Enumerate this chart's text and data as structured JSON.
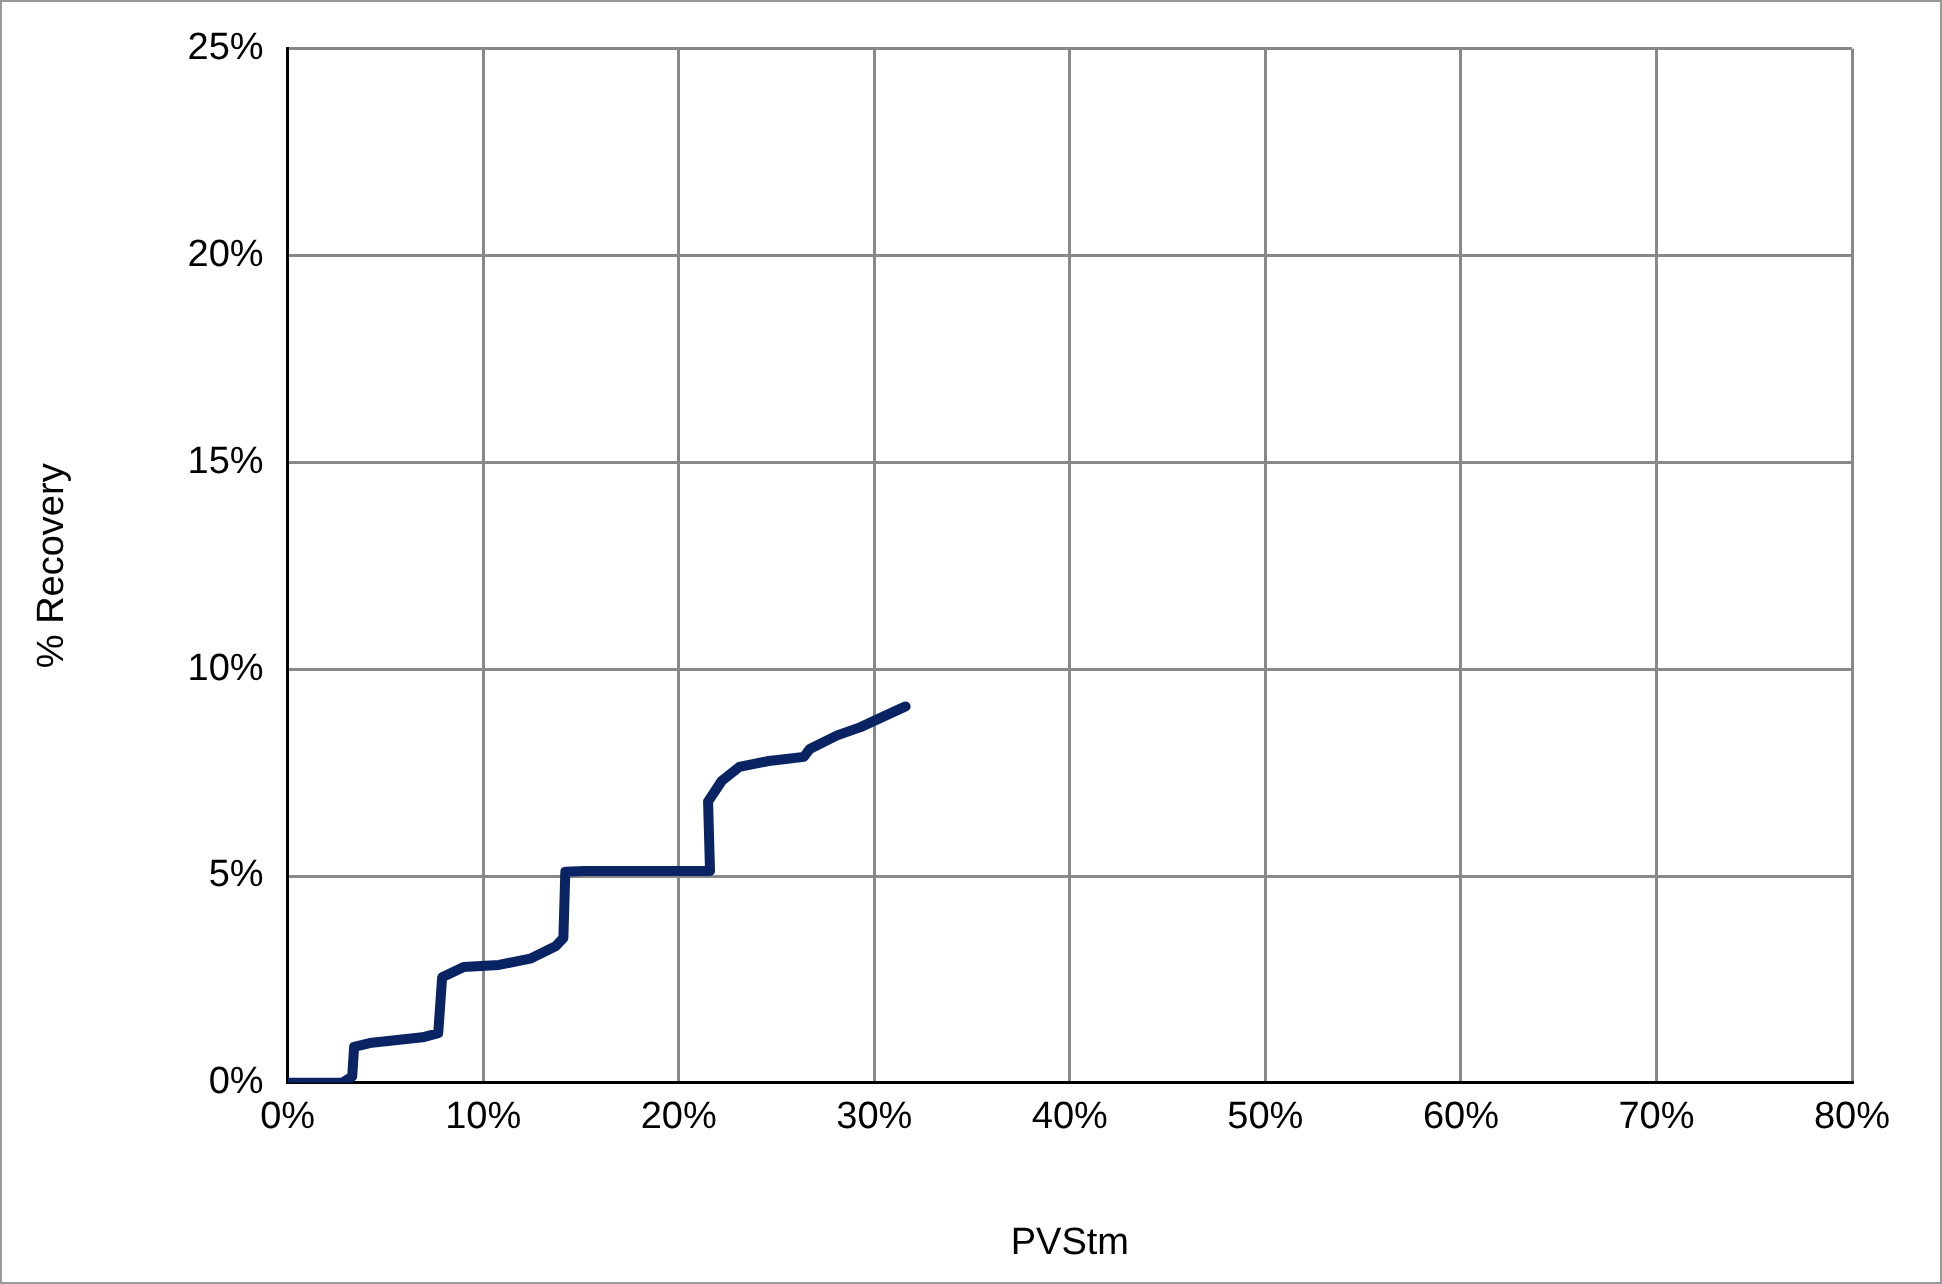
{
  "chart_data": {
    "type": "line",
    "xlabel": "PVStm",
    "ylabel": "% Recovery",
    "series": [
      {
        "color": "#0a2463",
        "x": [
          0,
          2.8,
          3.3,
          3.4,
          4.3,
          6.9,
          7.7,
          7.9,
          9.0,
          10.8,
          12.4,
          13.7,
          14.1,
          14.2,
          15.2,
          21.6,
          21.5,
          22.2,
          23.1,
          24.6,
          26.4,
          26.7,
          28.1,
          29.3,
          30.9,
          31.6
        ],
        "values": [
          0,
          0,
          0.15,
          0.87,
          0.97,
          1.1,
          1.2,
          2.55,
          2.8,
          2.85,
          3.0,
          3.3,
          3.5,
          5.1,
          5.12,
          5.12,
          6.8,
          7.3,
          7.64,
          7.78,
          7.88,
          8.07,
          8.4,
          8.6,
          8.95,
          9.1
        ]
      }
    ],
    "xlim": [
      0,
      80
    ],
    "xticks": [
      {
        "value": 0,
        "label": "0%"
      },
      {
        "value": 10,
        "label": "10%"
      },
      {
        "value": 20,
        "label": "20%"
      },
      {
        "value": 30,
        "label": "30%"
      },
      {
        "value": 40,
        "label": "40%"
      },
      {
        "value": 50,
        "label": "50%"
      },
      {
        "value": 60,
        "label": "60%"
      },
      {
        "value": 70,
        "label": "70%"
      },
      {
        "value": 80,
        "label": "80%"
      }
    ],
    "ylim": [
      0,
      25
    ],
    "yticks": [
      {
        "value": 0,
        "label": "0%"
      },
      {
        "value": 5,
        "label": "5%"
      },
      {
        "value": 10,
        "label": "10%"
      },
      {
        "value": 15,
        "label": "15%"
      },
      {
        "value": 20,
        "label": "20%"
      },
      {
        "value": 25,
        "label": "25%"
      }
    ],
    "grid": true,
    "legend": false,
    "marker": "none",
    "line_style": "solid"
  }
}
